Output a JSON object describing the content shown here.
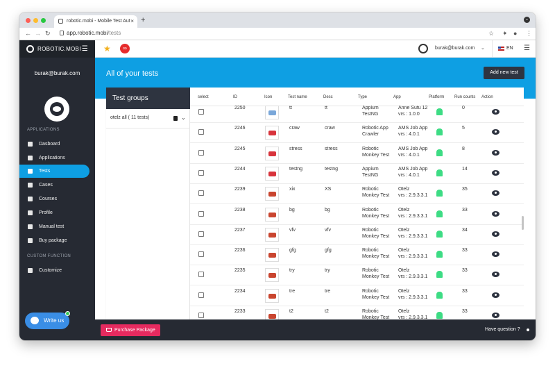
{
  "browser": {
    "tab_title": "robotic.mobi - Mobile Test Aut",
    "tab_close": "×",
    "new_tab": "+",
    "url_host": "app.robotic.mobi",
    "url_path": "/tests"
  },
  "sidebar": {
    "brand": "ROBOTIC.MOBI",
    "user_email": "burak@burak.com",
    "section_applications": "APPLICATIONS",
    "section_custom": "CUSTOM FUNCTION",
    "items": [
      {
        "label": "Dasboard"
      },
      {
        "label": "Applications"
      },
      {
        "label": "Tests"
      },
      {
        "label": "Cases"
      },
      {
        "label": "Courses"
      },
      {
        "label": "Profile"
      },
      {
        "label": "Manual test"
      },
      {
        "label": "Buy package"
      }
    ],
    "custom_items": [
      {
        "label": "Customize"
      }
    ],
    "write_us": "Write us"
  },
  "topbar": {
    "badge": "∞",
    "user": "burak@burak.com",
    "lang": "EN"
  },
  "banner": {
    "title": "All of your tests",
    "add_button": "Add new test"
  },
  "groups": {
    "header": "Test groups",
    "items": [
      {
        "label": "otelz all ( 11 tests)"
      }
    ]
  },
  "table": {
    "columns": [
      "select",
      "ID",
      "Icon",
      "Test name",
      "Desc",
      "Type",
      "App",
      "Platform",
      "Run counts",
      "Action"
    ],
    "rows": [
      {
        "id": "2250",
        "name": "tt",
        "desc": "tt",
        "type1": "Appium",
        "type2": "TestNG",
        "app1": "Anne Sutu 12",
        "app2": "vrs : 1.0.0",
        "runs": "0",
        "icon": "#7aa7d9"
      },
      {
        "id": "2246",
        "name": "craw",
        "desc": "craw",
        "type1": "Robotic App",
        "type2": "Crawler",
        "app1": "AMS Job App",
        "app2": "vrs : 4.0.1",
        "runs": "5",
        "icon": "#d8343c"
      },
      {
        "id": "2245",
        "name": "stress",
        "desc": "stress",
        "type1": "Robotic",
        "type2": "Monkey Test",
        "app1": "AMS Job App",
        "app2": "vrs : 4.0.1",
        "runs": "8",
        "icon": "#d8343c"
      },
      {
        "id": "2244",
        "name": "testng",
        "desc": "testng",
        "type1": "Appium",
        "type2": "TestNG",
        "app1": "AMS Job App",
        "app2": "vrs : 4.0.1",
        "runs": "14",
        "icon": "#d8343c"
      },
      {
        "id": "2239",
        "name": "xix",
        "desc": "XS",
        "type1": "Robotic",
        "type2": "Monkey Test",
        "app1": "Otelz",
        "app2": "vrs : 2.9.3.3.1",
        "runs": "35",
        "icon": "#c9452f"
      },
      {
        "id": "2238",
        "name": "bg",
        "desc": "bg",
        "type1": "Robotic",
        "type2": "Monkey Test",
        "app1": "Otelz",
        "app2": "vrs : 2.9.3.3.1",
        "runs": "33",
        "icon": "#c9452f"
      },
      {
        "id": "2237",
        "name": "vfv",
        "desc": "vfv",
        "type1": "Robotic",
        "type2": "Monkey Test",
        "app1": "Otelz",
        "app2": "vrs : 2.9.3.3.1",
        "runs": "34",
        "icon": "#c9452f"
      },
      {
        "id": "2236",
        "name": "gfg",
        "desc": "gfg",
        "type1": "Robotic",
        "type2": "Monkey Test",
        "app1": "Otelz",
        "app2": "vrs : 2.9.3.3.1",
        "runs": "33",
        "icon": "#c9452f"
      },
      {
        "id": "2235",
        "name": "try",
        "desc": "try",
        "type1": "Robotic",
        "type2": "Monkey Test",
        "app1": "Otelz",
        "app2": "vrs : 2.9.3.3.1",
        "runs": "33",
        "icon": "#c9452f"
      },
      {
        "id": "2234",
        "name": "tre",
        "desc": "tre",
        "type1": "Robotic",
        "type2": "Monkey Test",
        "app1": "Otelz",
        "app2": "vrs : 2.9.3.3.1",
        "runs": "33",
        "icon": "#c9452f"
      },
      {
        "id": "2233",
        "name": "t2",
        "desc": "t2",
        "type1": "Robotic",
        "type2": "Monkey Test",
        "app1": "Otelz",
        "app2": "vrs : 2.9.3.3.1",
        "runs": "33",
        "icon": "#c9452f"
      }
    ]
  },
  "footer": {
    "purchase": "Purchase Package",
    "question": "Have question ?"
  },
  "colors": {
    "accent": "#0e9fe3",
    "sidebar": "#262a33",
    "purchase": "#e62a5f",
    "android": "#3ddc84"
  },
  "icons": [
    "star-icon",
    "bug-icon",
    "eye-icon",
    "android-icon",
    "trash-icon",
    "chat-icon",
    "cart-icon"
  ]
}
